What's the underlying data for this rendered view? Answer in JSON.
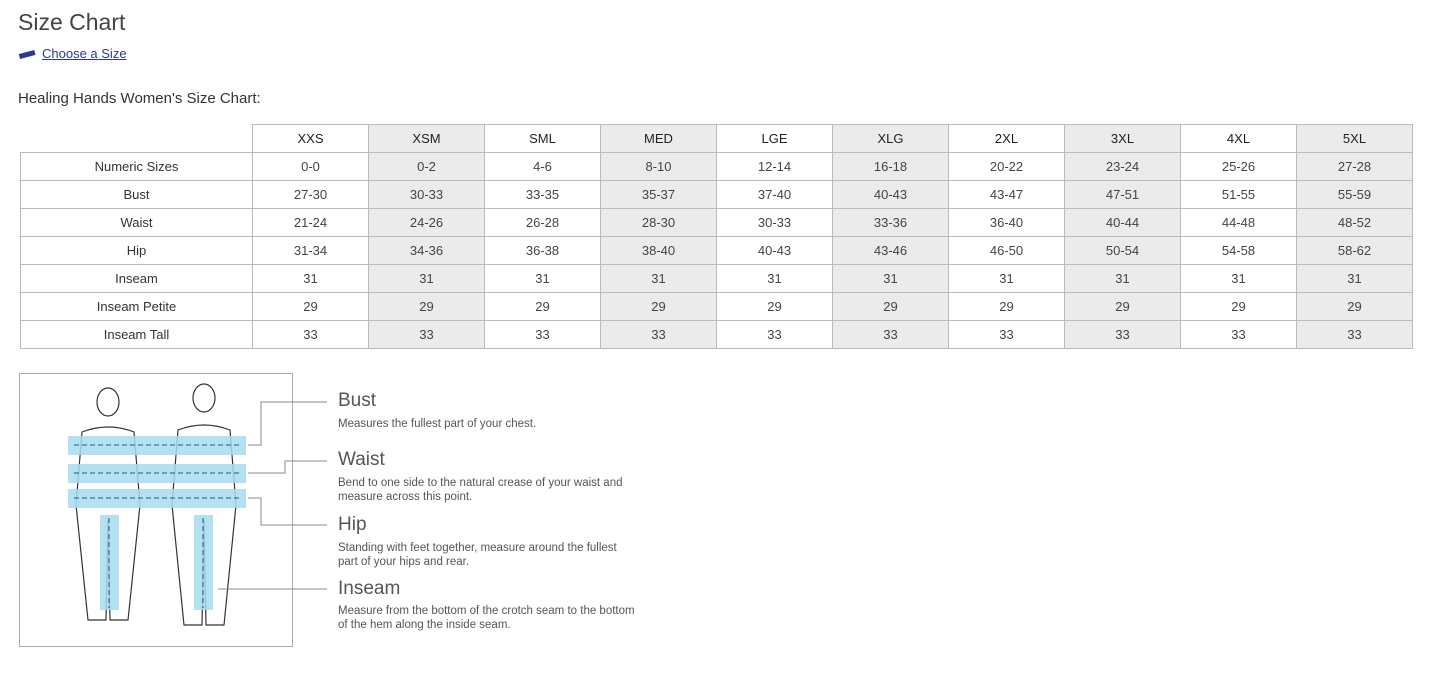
{
  "title": "Size Chart",
  "choose_link": "Choose a Size",
  "subtitle": "Healing Hands Women's Size Chart:",
  "table": {
    "columns": [
      "XXS",
      "XSM",
      "SML",
      "MED",
      "LGE",
      "XLG",
      "2XL",
      "3XL",
      "4XL",
      "5XL"
    ],
    "rows": [
      {
        "label": "Numeric Sizes",
        "values": [
          "0-0",
          "0-2",
          "4-6",
          "8-10",
          "12-14",
          "16-18",
          "20-22",
          "23-24",
          "25-26",
          "27-28"
        ]
      },
      {
        "label": "Bust",
        "values": [
          "27-30",
          "30-33",
          "33-35",
          "35-37",
          "37-40",
          "40-43",
          "43-47",
          "47-51",
          "51-55",
          "55-59"
        ]
      },
      {
        "label": "Waist",
        "values": [
          "21-24",
          "24-26",
          "26-28",
          "28-30",
          "30-33",
          "33-36",
          "36-40",
          "40-44",
          "44-48",
          "48-52"
        ]
      },
      {
        "label": "Hip",
        "values": [
          "31-34",
          "34-36",
          "36-38",
          "38-40",
          "40-43",
          "43-46",
          "46-50",
          "50-54",
          "54-58",
          "58-62"
        ]
      },
      {
        "label": "Inseam",
        "values": [
          "31",
          "31",
          "31",
          "31",
          "31",
          "31",
          "31",
          "31",
          "31",
          "31"
        ]
      },
      {
        "label": "Inseam Petite",
        "values": [
          "29",
          "29",
          "29",
          "29",
          "29",
          "29",
          "29",
          "29",
          "29",
          "29"
        ]
      },
      {
        "label": "Inseam Tall",
        "values": [
          "33",
          "33",
          "33",
          "33",
          "33",
          "33",
          "33",
          "33",
          "33",
          "33"
        ]
      }
    ]
  },
  "guide": [
    {
      "name": "Bust",
      "desc": "Measures the fullest part of your chest."
    },
    {
      "name": "Waist",
      "desc": "Bend to one side to the natural crease of your waist and measure across this point."
    },
    {
      "name": "Hip",
      "desc": "Standing with feet together, measure around the fullest part of your hips and rear."
    },
    {
      "name": "Inseam",
      "desc": "Measure from the bottom of the crotch seam to the bottom of the hem along the inside seam."
    }
  ],
  "colors": {
    "link": "#2b3a8c",
    "band": "#a8dcf0",
    "shade": "#ebebeb"
  }
}
